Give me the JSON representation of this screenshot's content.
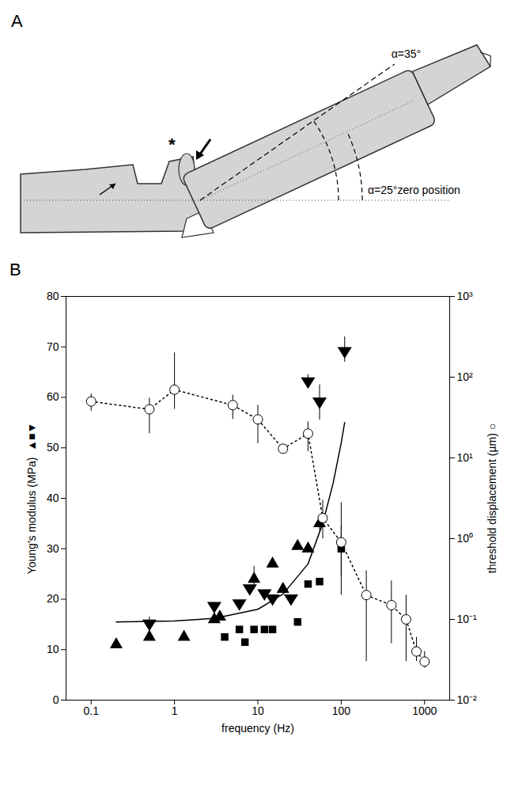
{
  "diagram": {
    "panel_label": "A",
    "star": "*",
    "lines": [
      {
        "angle": 35,
        "label": "α=35°"
      },
      {
        "angle": 25,
        "label": "α=25°zero position"
      }
    ]
  },
  "chart_data": {
    "panel_label": "B",
    "type": "scatter",
    "x_label": "frequency (Hz)",
    "y_label": "Young's modulus (MPa)  ▲■▼",
    "y2_label": "threshold displacement (µm) ○",
    "log": [
      "x",
      "y2"
    ],
    "grid": false,
    "xlim": [
      0.05,
      2000
    ],
    "xticks": [
      0.1,
      1,
      10,
      100,
      1000
    ],
    "ylim": [
      0,
      80
    ],
    "yticks": [
      0,
      10,
      20,
      30,
      40,
      50,
      60,
      70,
      80
    ],
    "y2lim": [
      0.01,
      1000
    ],
    "y2ticks": [
      {
        "value": 0.01,
        "label": "10⁻²"
      },
      {
        "value": 0.1,
        "label": "10⁻¹"
      },
      {
        "value": 1,
        "label": "10⁰"
      },
      {
        "value": 10,
        "label": "10¹"
      },
      {
        "value": 100,
        "label": "10²"
      },
      {
        "value": 1000,
        "label": "10³"
      }
    ],
    "series": [
      {
        "type": "scatter",
        "marker": "triangle-up",
        "color": "#000000",
        "x": [
          0.2,
          0.5,
          1.3,
          3,
          3.5,
          9,
          15,
          20,
          30,
          40,
          55
        ],
        "values": [
          11,
          12.5,
          12.5,
          16,
          16.5,
          24,
          27,
          22,
          30.5,
          30,
          35
        ],
        "y_low": [
          null,
          null,
          null,
          null,
          null,
          22,
          null,
          null,
          null,
          null,
          33.5
        ],
        "y_high": [
          null,
          null,
          null,
          null,
          null,
          26.5,
          null,
          null,
          null,
          null,
          36.5
        ]
      },
      {
        "type": "scatter",
        "marker": "triangle-down",
        "color": "#000000",
        "x": [
          0.5,
          3,
          6,
          8,
          12,
          15,
          25,
          40,
          55,
          110
        ],
        "values": [
          15,
          18.5,
          19,
          22,
          21,
          20,
          20,
          63,
          59,
          69
        ],
        "y_low": [
          13,
          null,
          null,
          null,
          null,
          null,
          null,
          62,
          55.5,
          67
        ],
        "y_high": [
          16.5,
          null,
          null,
          null,
          null,
          null,
          null,
          64.5,
          62.5,
          72
        ]
      },
      {
        "type": "scatter",
        "marker": "square",
        "color": "#000000",
        "x": [
          4,
          6,
          7,
          9,
          12,
          15,
          30,
          40,
          55,
          100
        ],
        "values": [
          12.5,
          14,
          11.5,
          14,
          14,
          14,
          15.5,
          23,
          23.5,
          30
        ],
        "y_low": [
          null,
          null,
          null,
          null,
          null,
          null,
          null,
          null,
          null,
          24.5
        ],
        "y_high": [
          null,
          null,
          null,
          null,
          null,
          null,
          null,
          null,
          null,
          34.5
        ]
      },
      {
        "type": "line",
        "line_style": "solid",
        "color": "#000000",
        "x": [
          0.2,
          1,
          3,
          10,
          20,
          40,
          60,
          80,
          100,
          110
        ],
        "values": [
          15.5,
          15.7,
          16.2,
          18,
          21,
          27,
          35,
          43,
          51,
          55
        ]
      },
      {
        "type": "line",
        "marker": "circle-open",
        "line_style": "dotted",
        "color": "#000000",
        "axis": "y2",
        "x": [
          0.1,
          0.5,
          1,
          5,
          10,
          20,
          40,
          60,
          100,
          200,
          400,
          600,
          800,
          1000
        ],
        "values": [
          50,
          40,
          70,
          45,
          30,
          13,
          20,
          1.8,
          0.9,
          0.2,
          0.15,
          0.1,
          0.04,
          0.03
        ],
        "y_low": [
          38,
          20,
          40,
          30,
          15,
          null,
          12,
          1,
          0.2,
          0.03,
          0.05,
          0.03,
          0.03,
          0.025
        ],
        "y_high": [
          62,
          55,
          200,
          60,
          45,
          null,
          28,
          3,
          2.8,
          0.4,
          0.3,
          0.2,
          0.06,
          0.04
        ]
      }
    ]
  }
}
